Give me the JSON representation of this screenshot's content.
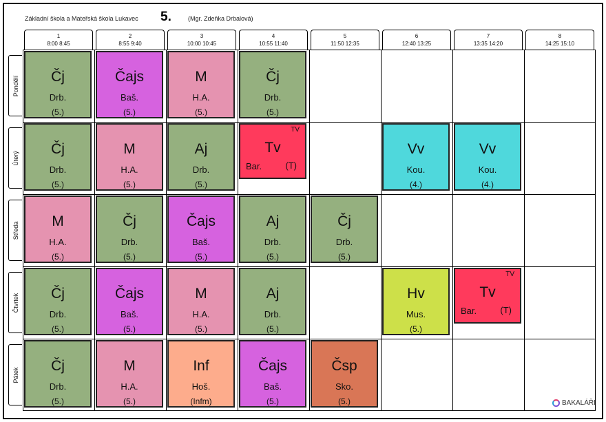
{
  "header": {
    "school": "Základní škola a Mateřská škola Lukavec",
    "class": "5.",
    "teacher": "(Mgr. Zdeňka Drbalová)"
  },
  "periods": [
    {
      "num": "1",
      "time": "8:00  8:45"
    },
    {
      "num": "2",
      "time": "8:55  9:40"
    },
    {
      "num": "3",
      "time": "10:00 10:45"
    },
    {
      "num": "4",
      "time": "10:55 11:40"
    },
    {
      "num": "5",
      "time": "11:50 12:35"
    },
    {
      "num": "6",
      "time": "12:40 13:25"
    },
    {
      "num": "7",
      "time": "13:35 14:20"
    },
    {
      "num": "8",
      "time": "14:25 15:10"
    }
  ],
  "days": [
    "Pondělí",
    "Úterý",
    "Středa",
    "Čtvrtek",
    "Pátek"
  ],
  "colors": {
    "cj": "#95b07f",
    "cajs": "#d662df",
    "m": "#e593b0",
    "aj": "#95b07f",
    "tv": "#ff3a5c",
    "vv": "#4fd8dc",
    "hv": "#cde049",
    "inf": "#fdac8c",
    "csp": "#d97656"
  },
  "lessons": [
    {
      "day": 0,
      "period": 0,
      "subject": "Čj",
      "teacher": "Drb.",
      "room": "(5.)",
      "color": "cj"
    },
    {
      "day": 0,
      "period": 1,
      "subject": "Čajs",
      "teacher": "Baš.",
      "room": "(5.)",
      "color": "cajs"
    },
    {
      "day": 0,
      "period": 2,
      "subject": "M",
      "teacher": "H.A.",
      "room": "(5.)",
      "color": "m"
    },
    {
      "day": 0,
      "period": 3,
      "subject": "Čj",
      "teacher": "Drb.",
      "room": "(5.)",
      "color": "cj"
    },
    {
      "day": 1,
      "period": 0,
      "subject": "Čj",
      "teacher": "Drb.",
      "room": "(5.)",
      "color": "cj"
    },
    {
      "day": 1,
      "period": 1,
      "subject": "M",
      "teacher": "H.A.",
      "room": "(5.)",
      "color": "m"
    },
    {
      "day": 1,
      "period": 2,
      "subject": "Aj",
      "teacher": "Drb.",
      "room": "(5.)",
      "color": "aj"
    },
    {
      "day": 1,
      "period": 3,
      "subject": "Tv",
      "teacher": "Bar.",
      "room": "(T)",
      "group": "TV",
      "color": "tv",
      "half": true
    },
    {
      "day": 1,
      "period": 5,
      "subject": "Vv",
      "teacher": "Kou.",
      "room": "(4.)",
      "color": "vv"
    },
    {
      "day": 1,
      "period": 6,
      "subject": "Vv",
      "teacher": "Kou.",
      "room": "(4.)",
      "color": "vv"
    },
    {
      "day": 2,
      "period": 0,
      "subject": "M",
      "teacher": "H.A.",
      "room": "(5.)",
      "color": "m"
    },
    {
      "day": 2,
      "period": 1,
      "subject": "Čj",
      "teacher": "Drb.",
      "room": "(5.)",
      "color": "cj"
    },
    {
      "day": 2,
      "period": 2,
      "subject": "Čajs",
      "teacher": "Baš.",
      "room": "(5.)",
      "color": "cajs"
    },
    {
      "day": 2,
      "period": 3,
      "subject": "Aj",
      "teacher": "Drb.",
      "room": "(5.)",
      "color": "aj"
    },
    {
      "day": 2,
      "period": 4,
      "subject": "Čj",
      "teacher": "Drb.",
      "room": "(5.)",
      "color": "cj"
    },
    {
      "day": 3,
      "period": 0,
      "subject": "Čj",
      "teacher": "Drb.",
      "room": "(5.)",
      "color": "cj"
    },
    {
      "day": 3,
      "period": 1,
      "subject": "Čajs",
      "teacher": "Baš.",
      "room": "(5.)",
      "color": "cajs"
    },
    {
      "day": 3,
      "period": 2,
      "subject": "M",
      "teacher": "H.A.",
      "room": "(5.)",
      "color": "m"
    },
    {
      "day": 3,
      "period": 3,
      "subject": "Aj",
      "teacher": "Drb.",
      "room": "(5.)",
      "color": "aj"
    },
    {
      "day": 3,
      "period": 5,
      "subject": "Hv",
      "teacher": "Mus.",
      "room": "(5.)",
      "color": "hv"
    },
    {
      "day": 3,
      "period": 6,
      "subject": "Tv",
      "teacher": "Bar.",
      "room": "(T)",
      "group": "TV",
      "color": "tv",
      "half": true
    },
    {
      "day": 4,
      "period": 0,
      "subject": "Čj",
      "teacher": "Drb.",
      "room": "(5.)",
      "color": "cj"
    },
    {
      "day": 4,
      "period": 1,
      "subject": "M",
      "teacher": "H.A.",
      "room": "(5.)",
      "color": "m"
    },
    {
      "day": 4,
      "period": 2,
      "subject": "Inf",
      "teacher": "Hoš.",
      "room": "(Infm)",
      "color": "inf"
    },
    {
      "day": 4,
      "period": 3,
      "subject": "Čajs",
      "teacher": "Baš.",
      "room": "(5.)",
      "color": "cajs"
    },
    {
      "day": 4,
      "period": 4,
      "subject": "Čsp",
      "teacher": "Sko.",
      "room": "(5.)",
      "color": "csp"
    }
  ],
  "logo": {
    "text": "BAKALÁŘI",
    "icon": "bakalari-logo-icon"
  }
}
